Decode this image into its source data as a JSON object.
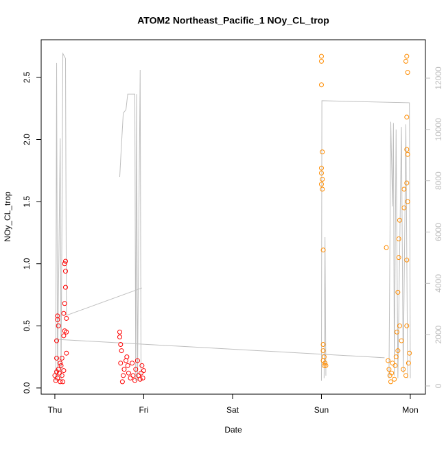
{
  "chart_data": {
    "type": "scatter",
    "title": "ATOM2 Northeast_Pacific_1 NOy_CL_trop",
    "x_label": "Date",
    "y_label": "NOy_CL_trop",
    "xlim": [
      -0.154,
      4.17
    ],
    "xticks": [
      {
        "value": 0,
        "label": "Thu"
      },
      {
        "value": 1,
        "label": "Fri"
      },
      {
        "value": 2,
        "label": "Sat"
      },
      {
        "value": 3,
        "label": "Sun"
      },
      {
        "value": 4,
        "label": "Mon"
      }
    ],
    "ylim": [
      -0.05,
      2.803
    ],
    "yticks": [
      {
        "value": 0,
        "label": "0.0"
      },
      0.5,
      {
        "value": 1,
        "label": "1.0"
      },
      1.5,
      {
        "value": 2,
        "label": "2.0"
      },
      2.5
    ],
    "y2lim": [
      -321,
      13497
    ],
    "y2ticks": [
      0,
      2000,
      4000,
      6000,
      8000,
      10000,
      12000
    ],
    "series": [
      {
        "type": "scatter",
        "color": "#ff0000",
        "x": [
          0.03,
          0.03,
          0.02,
          0.04,
          0.1,
          0.11,
          0.12,
          0.11,
          0.12,
          0.12,
          0.13,
          0.11,
          0.1,
          0.13,
          0.13,
          0.0,
          0.01,
          0.02,
          0.03,
          0.04,
          0.05,
          0.06,
          0.07,
          0.08,
          0.09,
          0.1,
          0.02,
          0.08,
          0.06,
          0.73,
          0.73,
          0.74,
          0.75,
          0.74,
          0.76,
          0.77,
          0.78,
          0.8,
          0.81,
          0.82,
          0.83,
          0.85,
          0.87,
          0.88,
          0.9,
          0.91,
          0.93,
          0.94,
          0.96,
          0.97,
          0.98,
          0.99,
          1.0
        ],
        "values": [
          0.55,
          0.58,
          0.38,
          0.5,
          0.6,
          0.68,
          1.02,
          1.0,
          0.94,
          0.81,
          0.56,
          0.46,
          0.42,
          0.28,
          0.45,
          0.1,
          0.06,
          0.13,
          0.08,
          0.15,
          0.12,
          0.05,
          0.18,
          0.1,
          0.05,
          0.14,
          0.24,
          0.24,
          0.2,
          0.45,
          0.41,
          0.35,
          0.3,
          0.2,
          0.05,
          0.1,
          0.15,
          0.22,
          0.25,
          0.18,
          0.12,
          0.08,
          0.2,
          0.1,
          0.06,
          0.15,
          0.22,
          0.1,
          0.07,
          0.12,
          0.18,
          0.08,
          0.14
        ]
      },
      {
        "type": "scatter",
        "color": "#ff8c00",
        "x": [
          3.0,
          3.0,
          3.0,
          3.01,
          3.0,
          3.0,
          3.01,
          3.0,
          3.01,
          3.02,
          3.02,
          3.02,
          3.03,
          3.02,
          3.04,
          3.05,
          3.03,
          3.73,
          3.75,
          3.76,
          3.77,
          3.78,
          3.79,
          3.8,
          3.82,
          3.83,
          3.84,
          3.85,
          3.86,
          3.86,
          3.87,
          3.87,
          3.88,
          3.88,
          3.9,
          3.92,
          3.93,
          3.93,
          3.95,
          3.96,
          3.97,
          3.96,
          3.96,
          3.97,
          3.96,
          3.97,
          3.96,
          3.98,
          3.96,
          3.99,
          3.95
        ],
        "values": [
          2.67,
          2.63,
          2.44,
          1.9,
          1.77,
          1.73,
          1.68,
          1.64,
          1.6,
          1.11,
          0.35,
          0.3,
          0.25,
          0.22,
          0.2,
          0.18,
          0.18,
          1.13,
          0.22,
          0.15,
          0.1,
          0.05,
          0.12,
          0.2,
          0.07,
          0.18,
          0.25,
          0.45,
          0.3,
          0.77,
          1.05,
          1.2,
          1.35,
          0.5,
          0.38,
          0.15,
          1.6,
          1.45,
          2.63,
          2.67,
          2.54,
          2.18,
          1.92,
          1.88,
          1.65,
          1.5,
          1.03,
          0.2,
          0.5,
          0.28,
          0.1
        ]
      },
      {
        "type": "line",
        "axis": "y2",
        "color": "#bebebe",
        "x": [
          0.0,
          0.01,
          0.02,
          0.03,
          0.06,
          0.07,
          0.09,
          0.12,
          0.13,
          0.98,
          null,
          0.0,
          3.71,
          null,
          0.73,
          0.75,
          0.77,
          0.8,
          0.82,
          0.9,
          0.91,
          0.92,
          0.93,
          0.96,
          0.97,
          null,
          3.0,
          3.005,
          3.99,
          4.0,
          null,
          3.03,
          3.04,
          3.05,
          null,
          3.76,
          3.78,
          3.8,
          3.81,
          3.82,
          3.84,
          3.86,
          3.9,
          3.92,
          3.95,
          3.97
        ],
        "values": [
          200,
          600,
          12590,
          300,
          9650,
          200,
          12960,
          12770,
          2750,
          3820,
          null,
          1820,
          1100,
          null,
          8150,
          9430,
          10640,
          10770,
          11380,
          11380,
          200,
          11380,
          200,
          12320,
          200,
          null,
          200,
          11120,
          11040,
          300,
          null,
          300,
          5800,
          400,
          null,
          300,
          10300,
          7000,
          10250,
          400,
          10000,
          300,
          10100,
          500,
          10200,
          300
        ]
      }
    ]
  }
}
